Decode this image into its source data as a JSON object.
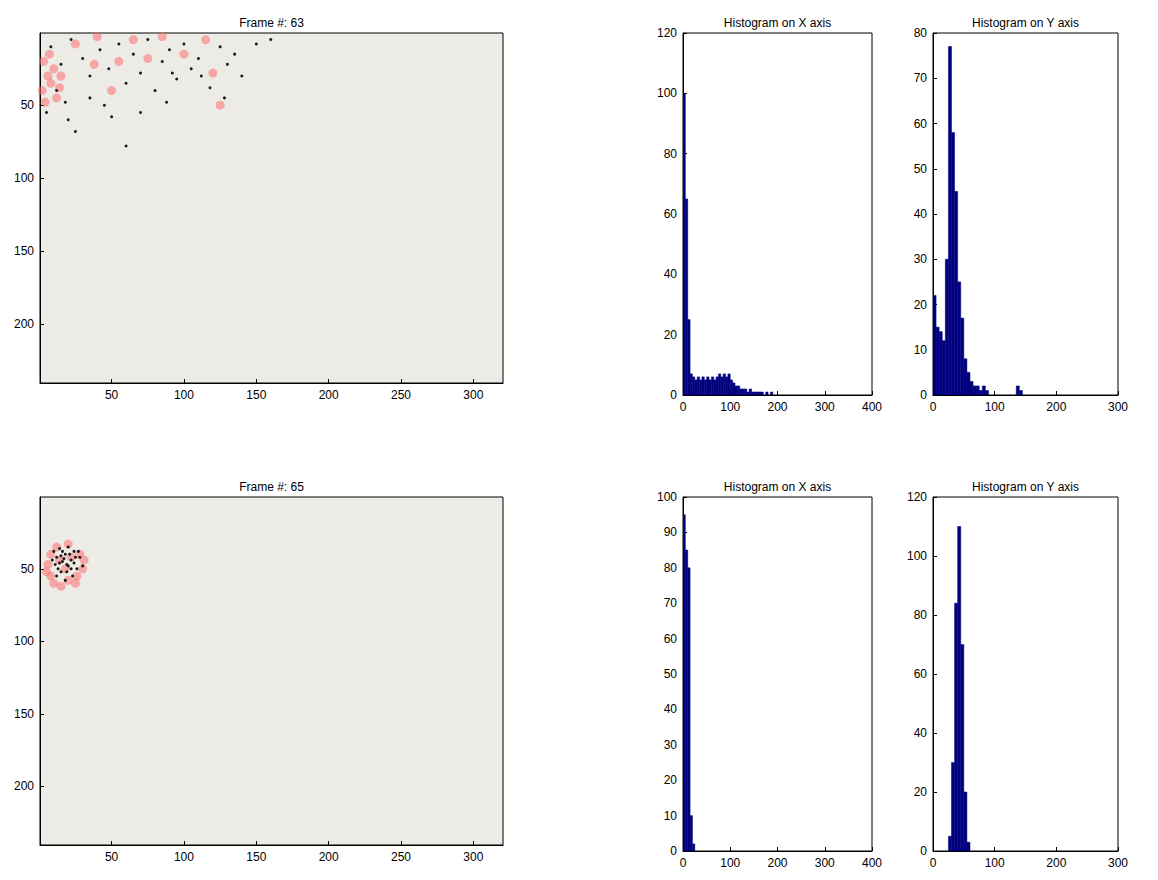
{
  "chart_data": [
    {
      "type": "scatter",
      "title": "Frame #: 63",
      "xlim": [
        0.5,
        320.5
      ],
      "ylim": [
        0.5,
        240.5
      ],
      "xticks": [
        50,
        100,
        150,
        200,
        250,
        300
      ],
      "yticks": [
        50,
        100,
        150,
        200
      ],
      "grid": false,
      "series": [
        {
          "color": "#ff7070",
          "marker": "circle",
          "x": [
            3,
            6,
            2,
            8,
            10,
            12,
            4,
            15,
            25,
            40,
            55,
            65,
            75,
            85,
            100,
            115,
            120,
            38,
            50,
            125,
            7,
            14
          ],
          "values": [
            20,
            30,
            40,
            35,
            25,
            45,
            48,
            30,
            8,
            3,
            20,
            5,
            18,
            3,
            15,
            5,
            28,
            22,
            40,
            50,
            15,
            38
          ]
        },
        {
          "color": "#1a1a1a",
          "marker": "circle",
          "x": [
            8,
            15,
            22,
            30,
            35,
            42,
            48,
            55,
            60,
            65,
            70,
            75,
            80,
            85,
            90,
            95,
            100,
            105,
            110,
            118,
            125,
            130,
            140,
            150,
            20,
            25,
            35,
            45,
            50,
            60,
            70,
            88,
            12,
            18,
            5,
            92,
            112,
            135,
            160,
            128
          ],
          "values": [
            10,
            22,
            5,
            18,
            30,
            12,
            25,
            8,
            35,
            15,
            28,
            5,
            40,
            20,
            12,
            32,
            8,
            25,
            18,
            38,
            10,
            22,
            30,
            8,
            60,
            68,
            45,
            50,
            58,
            78,
            55,
            48,
            40,
            48,
            55,
            28,
            30,
            15,
            5,
            45
          ]
        }
      ]
    },
    {
      "type": "histogram",
      "title": "Histogram on X axis",
      "color": "#00007f",
      "xlim": [
        0,
        400
      ],
      "ylim": [
        0,
        120
      ],
      "xticks": [
        0,
        100,
        200,
        300,
        400
      ],
      "yticks": [
        0,
        20,
        40,
        60,
        80,
        100,
        120
      ],
      "grid": false,
      "bins": [
        0,
        5,
        10,
        15,
        20,
        25,
        30,
        35,
        40,
        45,
        50,
        55,
        60,
        65,
        70,
        75,
        80,
        85,
        90,
        95,
        100,
        105,
        110,
        115,
        120,
        125,
        130,
        135,
        140,
        145,
        150,
        155,
        160,
        165,
        170,
        175,
        180,
        185,
        190,
        195,
        200,
        205,
        210,
        215,
        220,
        225,
        230,
        235,
        240,
        245,
        250,
        255,
        260,
        265,
        270,
        275,
        280,
        285,
        290,
        295,
        300,
        305,
        310,
        315,
        320,
        325,
        330,
        335,
        340,
        345,
        350,
        355,
        360,
        365,
        370,
        375,
        380,
        385,
        390,
        395,
        400
      ],
      "values": [
        100,
        65,
        25,
        7,
        6,
        5,
        6,
        5,
        6,
        5,
        6,
        5,
        6,
        5,
        6,
        7,
        6,
        7,
        6,
        7,
        5,
        4,
        3,
        3,
        2,
        2,
        2,
        1,
        2,
        1,
        1,
        1,
        1,
        1,
        0,
        1,
        0,
        1,
        0,
        0,
        0,
        0,
        0,
        0,
        0,
        0,
        0,
        0,
        0,
        0,
        0,
        0,
        0,
        0,
        0,
        0,
        0,
        0,
        0,
        0,
        0,
        0,
        0,
        0,
        0,
        0,
        0,
        0,
        0,
        0,
        0,
        0,
        0,
        0,
        0,
        0,
        0,
        0,
        0,
        0
      ]
    },
    {
      "type": "histogram",
      "title": "Histogram on Y axis",
      "color": "#00007f",
      "xlim": [
        0,
        300
      ],
      "ylim": [
        0,
        80
      ],
      "xticks": [
        0,
        100,
        200,
        300
      ],
      "yticks": [
        0,
        10,
        20,
        30,
        40,
        50,
        60,
        70,
        80
      ],
      "grid": false,
      "bins": [
        0,
        5,
        10,
        15,
        20,
        25,
        30,
        35,
        40,
        45,
        50,
        55,
        60,
        65,
        70,
        75,
        80,
        85,
        90,
        95,
        100,
        105,
        110,
        115,
        120,
        125,
        130,
        135,
        140,
        145,
        150,
        155,
        160,
        165,
        170,
        175,
        180,
        185,
        190,
        195,
        200,
        205,
        210,
        215,
        220,
        225,
        230,
        235,
        240,
        245,
        250,
        255,
        260,
        265,
        270,
        275,
        280,
        285,
        290,
        295,
        300
      ],
      "values": [
        22,
        15,
        14,
        12,
        30,
        77,
        58,
        45,
        25,
        17,
        8,
        5,
        3,
        2,
        2,
        1,
        2,
        1,
        0,
        0,
        0,
        0,
        0,
        0,
        0,
        0,
        0,
        2,
        1,
        0,
        0,
        0,
        0,
        0,
        0,
        0,
        0,
        0,
        0,
        0,
        0,
        0,
        0,
        0,
        0,
        0,
        0,
        0,
        0,
        0,
        0,
        0,
        0,
        0,
        0,
        0,
        0,
        0,
        0,
        0
      ]
    },
    {
      "type": "scatter",
      "title": "Frame #: 65",
      "xlim": [
        0.5,
        320.5
      ],
      "ylim": [
        0.5,
        240.5
      ],
      "xticks": [
        50,
        100,
        150,
        200,
        250,
        300
      ],
      "yticks": [
        50,
        100,
        150,
        200
      ],
      "grid": false,
      "series": [
        {
          "color": "#ff7070",
          "marker": "circle",
          "x": [
            8,
            12,
            20,
            28,
            30,
            25,
            15,
            8,
            6,
            18,
            22,
            14,
            26,
            10,
            20,
            31,
            5
          ],
          "values": [
            40,
            35,
            33,
            40,
            50,
            60,
            62,
            55,
            47,
            50,
            42,
            44,
            55,
            60,
            58,
            44,
            52
          ]
        },
        {
          "color": "#1a1a1a",
          "marker": "circle",
          "x": [
            10,
            12,
            14,
            16,
            18,
            20,
            22,
            24,
            26,
            15,
            12,
            18,
            20,
            24,
            28,
            11,
            13,
            17,
            19,
            21,
            23,
            25,
            16,
            14,
            22,
            30,
            9,
            27,
            19,
            15
          ],
          "values": [
            38,
            42,
            36,
            45,
            40,
            48,
            44,
            38,
            50,
            52,
            55,
            58,
            35,
            46,
            42,
            47,
            50,
            43,
            52,
            40,
            55,
            42,
            38,
            46,
            50,
            48,
            44,
            38,
            47,
            41
          ]
        }
      ]
    },
    {
      "type": "histogram",
      "title": "Histogram on X axis",
      "color": "#00007f",
      "xlim": [
        0,
        400
      ],
      "ylim": [
        0,
        100
      ],
      "xticks": [
        0,
        100,
        200,
        300,
        400
      ],
      "yticks": [
        0,
        10,
        20,
        30,
        40,
        50,
        60,
        70,
        80,
        90,
        100
      ],
      "grid": false,
      "bins": [
        0,
        5,
        10,
        15,
        20,
        25,
        30,
        35,
        40,
        45,
        50,
        55,
        60,
        65,
        70,
        75,
        80,
        85,
        90,
        95,
        100,
        105,
        110,
        115,
        120,
        125,
        130,
        135,
        140,
        145,
        150,
        155,
        160,
        165,
        170,
        175,
        180,
        185,
        190,
        195,
        200,
        205,
        210,
        215,
        220,
        225,
        230,
        235,
        240,
        245,
        250,
        255,
        260,
        265,
        270,
        275,
        280,
        285,
        290,
        295,
        300,
        305,
        310,
        315,
        320,
        325,
        330,
        335,
        340,
        345,
        350,
        355,
        360,
        365,
        370,
        375,
        380,
        385,
        390,
        395,
        400
      ],
      "values": [
        95,
        85,
        80,
        10,
        2,
        0,
        0,
        0,
        0,
        0,
        0,
        0,
        0,
        0,
        0,
        0,
        0,
        0,
        0,
        0,
        0,
        0,
        0,
        0,
        0,
        0,
        0,
        0,
        0,
        0,
        0,
        0,
        0,
        0,
        0,
        0,
        0,
        0,
        0,
        0,
        0,
        0,
        0,
        0,
        0,
        0,
        0,
        0,
        0,
        0,
        0,
        0,
        0,
        0,
        0,
        0,
        0,
        0,
        0,
        0,
        0,
        0,
        0,
        0,
        0,
        0,
        0,
        0,
        0,
        0,
        0,
        0,
        0,
        0,
        0,
        0,
        0,
        0,
        0,
        0
      ]
    },
    {
      "type": "histogram",
      "title": "Histogram on Y axis",
      "color": "#00007f",
      "xlim": [
        0,
        300
      ],
      "ylim": [
        0,
        120
      ],
      "xticks": [
        0,
        100,
        200,
        300
      ],
      "yticks": [
        0,
        20,
        40,
        60,
        80,
        100,
        120
      ],
      "grid": false,
      "bins": [
        0,
        5,
        10,
        15,
        20,
        25,
        30,
        35,
        40,
        45,
        50,
        55,
        60,
        65,
        70,
        75,
        80,
        85,
        90,
        95,
        100,
        105,
        110,
        115,
        120,
        125,
        130,
        135,
        140,
        145,
        150,
        155,
        160,
        165,
        170,
        175,
        180,
        185,
        190,
        195,
        200,
        205,
        210,
        215,
        220,
        225,
        230,
        235,
        240,
        245,
        250,
        255,
        260,
        265,
        270,
        275,
        280,
        285,
        290,
        295,
        300
      ],
      "values": [
        0,
        0,
        0,
        0,
        0,
        5,
        30,
        84,
        110,
        70,
        20,
        3,
        0,
        0,
        0,
        0,
        0,
        0,
        0,
        0,
        0,
        0,
        0,
        0,
        0,
        0,
        0,
        0,
        0,
        0,
        0,
        0,
        0,
        0,
        0,
        0,
        0,
        0,
        0,
        0,
        0,
        0,
        0,
        0,
        0,
        0,
        0,
        0,
        0,
        0,
        0,
        0,
        0,
        0,
        0,
        0,
        0,
        0,
        0,
        0
      ]
    }
  ]
}
